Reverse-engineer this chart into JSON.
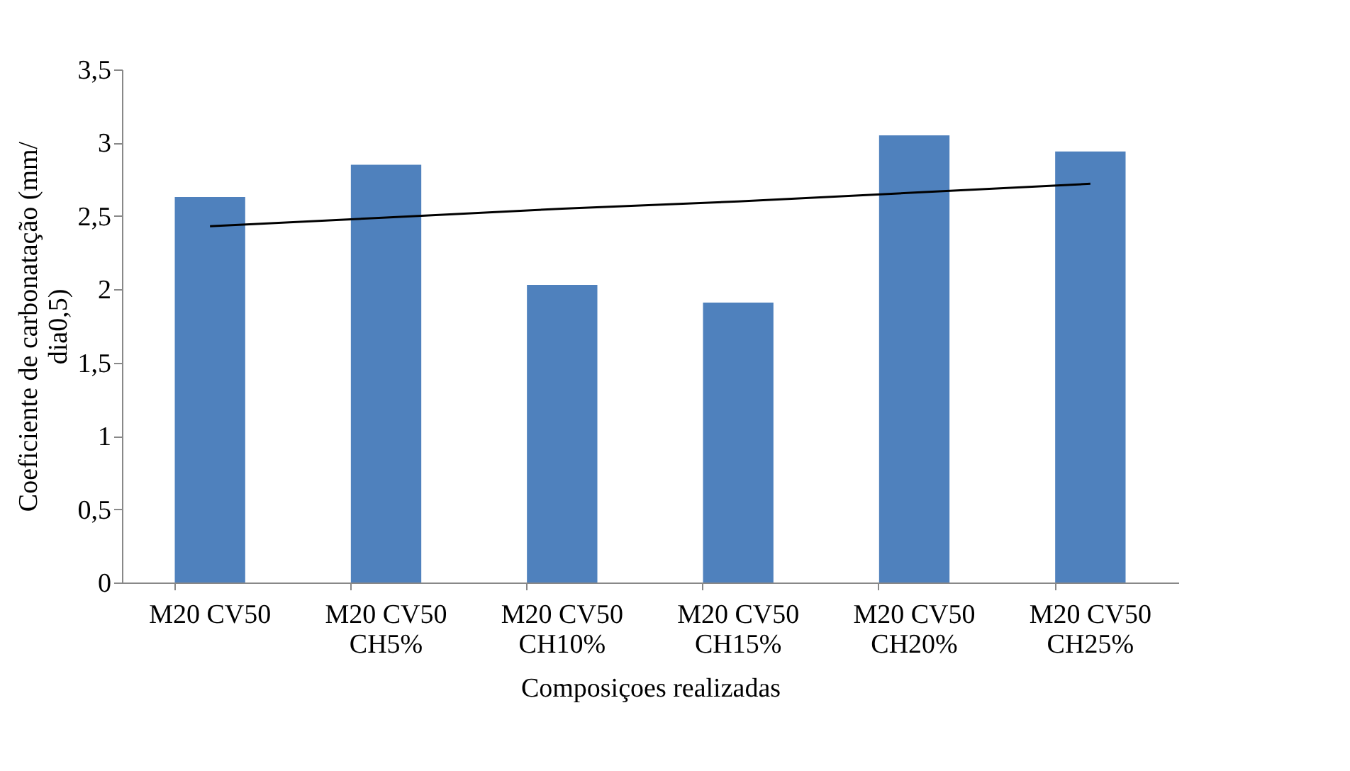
{
  "chart_data": {
    "type": "bar",
    "categories": [
      "M20 CV50",
      "M20 CV50\nCH5%",
      "M20 CV50\nCH10%",
      "M20 CV50\nCH15%",
      "M20 CV50\nCH20%",
      "M20 CV50\nCH25%"
    ],
    "series": [
      {
        "color": "#4f81bd",
        "values": [
          2.63,
          2.85,
          2.03,
          1.91,
          3.05,
          2.94
        ]
      },
      {
        "type": "line",
        "color": "#000000",
        "values": [
          2.43,
          2.49,
          2.55,
          2.6,
          2.66,
          2.72
        ]
      }
    ],
    "xlabel": "Composiçoes realizadas",
    "ylabel": "Coeficiente de carbonatação (mm/\ndia0,5)",
    "ylim": [
      0,
      3.5
    ],
    "yticks": [
      0,
      {
        "value": 0.5,
        "label": "0,5"
      },
      1,
      {
        "value": 1.5,
        "label": "1,5"
      },
      2,
      {
        "value": 2.5,
        "label": "2,5"
      },
      3,
      {
        "value": 3.5,
        "label": "3,5"
      }
    ],
    "grid": false
  }
}
